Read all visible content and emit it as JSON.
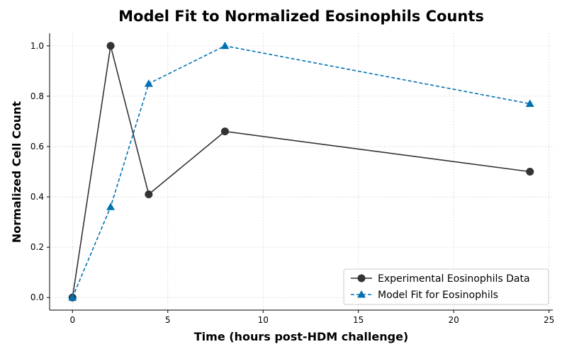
{
  "chart_data": {
    "type": "line",
    "title": "Model Fit to Normalized Eosinophils Counts",
    "xlabel": "Time (hours post-HDM challenge)",
    "ylabel": "Normalized Cell Count",
    "xlim": [
      -1.2,
      25.2
    ],
    "ylim": [
      -0.05,
      1.05
    ],
    "xticks": [
      0,
      5,
      10,
      15,
      20,
      25
    ],
    "xtick_labels": [
      "0",
      "5",
      "10",
      "15",
      "20",
      "25"
    ],
    "yticks": [
      0.0,
      0.2,
      0.4,
      0.6,
      0.8,
      1.0
    ],
    "ytick_labels": [
      "0.0",
      "0.2",
      "0.4",
      "0.6",
      "0.8",
      "1.0"
    ],
    "grid": true,
    "legend_position": "lower-right",
    "series": [
      {
        "name": "Experimental Eosinophils Data",
        "x": [
          0,
          2,
          4,
          8,
          24
        ],
        "y": [
          0.0,
          1.0,
          0.41,
          0.66,
          0.5
        ],
        "color": "#333333",
        "marker": "circle",
        "line_style": "solid"
      },
      {
        "name": "Model Fit for Eosinophils",
        "x": [
          0,
          2,
          4,
          8,
          24
        ],
        "y": [
          0.0,
          0.36,
          0.85,
          1.0,
          0.77
        ],
        "color": "#0072B2",
        "marker": "triangle",
        "line_style": "dashed"
      }
    ]
  }
}
